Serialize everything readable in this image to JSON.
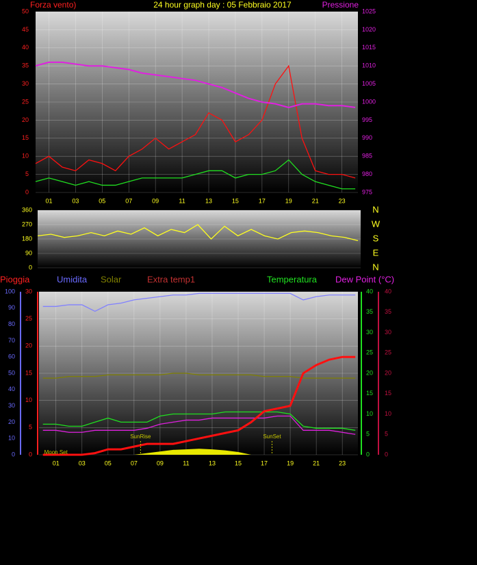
{
  "chart_data": [
    {
      "type": "line",
      "title": "24 hour graph day : 05 Febbraio 2017",
      "grid": true,
      "x": [
        0,
        1,
        2,
        3,
        4,
        5,
        6,
        7,
        8,
        9,
        10,
        11,
        12,
        13,
        14,
        15,
        16,
        17,
        18,
        19,
        20,
        21,
        22,
        23,
        24
      ],
      "xlim": [
        0,
        24.2
      ],
      "xticks": [
        {
          "value": 1,
          "label": "01"
        },
        {
          "value": 3,
          "label": "03"
        },
        {
          "value": 5,
          "label": "05"
        },
        {
          "value": 7,
          "label": "07"
        },
        {
          "value": 9,
          "label": "09"
        },
        11,
        13,
        15,
        17,
        19,
        21,
        23
      ],
      "axes": [
        {
          "label": "Forza vento)",
          "color": "#ff2020",
          "lim": [
            0,
            50
          ],
          "ticks": [
            0,
            5,
            10,
            15,
            20,
            25,
            30,
            35,
            40,
            45,
            50
          ]
        },
        {
          "label": "Pressione",
          "color": "#e020e0",
          "lim": [
            975,
            1025
          ],
          "ticks": [
            975,
            980,
            985,
            990,
            995,
            1000,
            1005,
            1010,
            1015,
            1020,
            1025
          ]
        }
      ],
      "series": [
        {
          "color": "#ff1010",
          "axis": 0,
          "values": [
            8,
            10,
            7,
            6,
            9,
            8,
            6,
            10,
            12,
            15,
            12,
            14,
            16,
            22,
            20,
            14,
            16,
            20,
            30,
            35,
            15,
            6,
            5,
            5,
            4
          ]
        },
        {
          "color": "#20e020",
          "axis": 0,
          "values": [
            3,
            4,
            3,
            2,
            3,
            2,
            2,
            3,
            4,
            4,
            4,
            4,
            5,
            6,
            6,
            4,
            5,
            5,
            6,
            9,
            5,
            3,
            2,
            1,
            1
          ]
        },
        {
          "color": "#e020e0",
          "axis": 1,
          "width": 2,
          "values": [
            1010,
            1011,
            1011,
            1010.5,
            1010,
            1010,
            1009.5,
            1009,
            1008,
            1007.5,
            1007,
            1006.5,
            1006,
            1005,
            1004,
            1002.5,
            1001,
            1000,
            999.5,
            998.5,
            999.5,
            999.5,
            999,
            999,
            998.5
          ]
        }
      ]
    },
    {
      "type": "line",
      "grid": true,
      "x": [
        0,
        1,
        2,
        3,
        4,
        5,
        6,
        7,
        8,
        9,
        10,
        11,
        12,
        13,
        14,
        15,
        16,
        17,
        18,
        19,
        20,
        21,
        22,
        23,
        24
      ],
      "xlim": [
        0,
        24.2
      ],
      "axes": [
        {
          "color": "#ffff20",
          "lim": [
            0,
            360
          ],
          "ticks": [
            0,
            90,
            180,
            270,
            360
          ]
        },
        {
          "color": "#ffff20",
          "lim": [
            0,
            360
          ],
          "ticks": [
            {
              "value": 360,
              "label": "N"
            },
            {
              "value": 270,
              "label": "W"
            },
            {
              "value": 180,
              "label": "S"
            },
            {
              "value": 90,
              "label": "E"
            },
            {
              "value": 0,
              "label": "N"
            }
          ]
        }
      ],
      "series": [
        {
          "color": "#ffff20",
          "axis": 0,
          "values": [
            200,
            210,
            190,
            200,
            220,
            200,
            230,
            210,
            250,
            200,
            240,
            220,
            270,
            180,
            260,
            200,
            240,
            200,
            180,
            220,
            230,
            220,
            200,
            190,
            170
          ]
        }
      ]
    },
    {
      "type": "line",
      "grid": true,
      "x": [
        0,
        1,
        2,
        3,
        4,
        5,
        6,
        7,
        8,
        9,
        10,
        11,
        12,
        13,
        14,
        15,
        16,
        17,
        18,
        19,
        20,
        21,
        22,
        23,
        24
      ],
      "xlim": [
        -0.3,
        24.2
      ],
      "xticks": [
        {
          "value": 1,
          "label": "01"
        },
        {
          "value": 3,
          "label": "03"
        },
        {
          "value": 5,
          "label": "05"
        },
        {
          "value": 7,
          "label": "07"
        },
        {
          "value": 9,
          "label": "09"
        },
        11,
        13,
        15,
        17,
        19,
        21,
        23
      ],
      "legend": [
        {
          "label": "Pioggia",
          "color": "#ff2020"
        },
        {
          "label": "Umidita",
          "color": "#6a6aff"
        },
        {
          "label": "Solar",
          "color": "#808000"
        },
        {
          "label": "Extra temp1",
          "color": "#c03030"
        },
        {
          "label": "Temperatura",
          "color": "#20e020"
        },
        {
          "label": "Dew Point (°C)",
          "color": "#e020e0"
        }
      ],
      "axes": [
        {
          "color": "#ff2020",
          "lim": [
            0,
            30
          ],
          "ticks": [
            0,
            5,
            10,
            15,
            20,
            25,
            30
          ]
        },
        {
          "color": "#6a6aff",
          "lim": [
            0,
            100
          ],
          "ticks": [
            0,
            10,
            20,
            30,
            40,
            50,
            60,
            70,
            80,
            90,
            100
          ]
        },
        {
          "color": "#20e020",
          "lim": [
            0,
            40
          ],
          "ticks": [
            0,
            5,
            10,
            15,
            20,
            25,
            30,
            35,
            40
          ]
        },
        {
          "color": "#c01040",
          "lim": [
            0,
            40
          ],
          "ticks": [
            0,
            5,
            10,
            15,
            20,
            25,
            30,
            35,
            40
          ]
        }
      ],
      "series": [
        {
          "color": "#e8e800",
          "axis": 0,
          "style": "area",
          "values": [
            0,
            0,
            0,
            0,
            0,
            0,
            0,
            0,
            0.3,
            0.6,
            0.9,
            1,
            1.1,
            1,
            0.8,
            0.5,
            0,
            0,
            0,
            0,
            0,
            0,
            0,
            0,
            0
          ]
        },
        {
          "name": "Solar",
          "color": "#808000",
          "axis": 1,
          "values": [
            47,
            47,
            48,
            48,
            48,
            49,
            49,
            49,
            49,
            49,
            50,
            50,
            49,
            49,
            49,
            49,
            49,
            48,
            48,
            48,
            47,
            47,
            47,
            47,
            47
          ]
        },
        {
          "color": "#8080ff",
          "axis": 1,
          "values": [
            91,
            91,
            92,
            92,
            88,
            92,
            93,
            95,
            96,
            97,
            98,
            98,
            99,
            99,
            99,
            99,
            99,
            99,
            99,
            99,
            95,
            97,
            98,
            98,
            98
          ]
        },
        {
          "color": "#e020e0",
          "axis": 3,
          "values": [
            6,
            6,
            5.5,
            5.5,
            6,
            6,
            6,
            6,
            6.5,
            7.5,
            8,
            8.5,
            8.5,
            9,
            9,
            9,
            9,
            9,
            9.5,
            9.5,
            6,
            6,
            6,
            5.5,
            5
          ]
        },
        {
          "color": "#20e020",
          "axis": 2,
          "values": [
            7.5,
            7.5,
            7,
            7,
            8,
            9,
            8,
            8,
            8,
            9.5,
            10,
            10,
            10,
            10,
            10.5,
            10.5,
            10.5,
            10.5,
            10.5,
            10,
            7,
            6.5,
            6.5,
            6.5,
            6
          ]
        },
        {
          "color": "#ff1010",
          "axis": 0,
          "width": 3,
          "values": [
            0,
            0,
            0,
            0,
            0.3,
            1,
            1,
            1.5,
            2,
            2,
            2,
            2.5,
            3,
            3.5,
            4,
            4.5,
            6,
            8,
            8.5,
            9,
            15,
            16.5,
            17.5,
            18,
            18
          ]
        }
      ],
      "annotations": [
        {
          "x": 1,
          "label": "Moon Set"
        },
        {
          "x": 7.5,
          "label": "SunRise"
        },
        {
          "x": 17.6,
          "label": "SunSet"
        }
      ]
    }
  ]
}
